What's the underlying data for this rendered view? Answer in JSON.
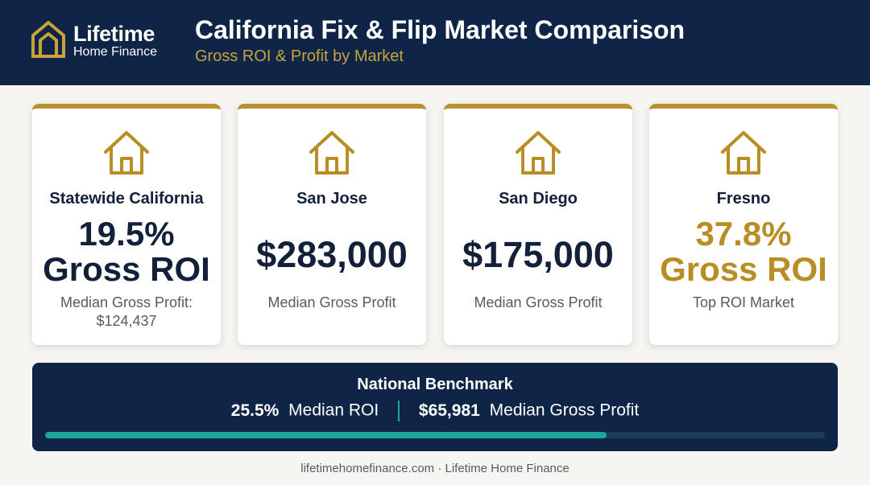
{
  "brand": {
    "name": "Lifetime",
    "sub": "Home Finance",
    "accent": "#c9a23a",
    "navy": "#0f2547",
    "teal": "#1ea69a"
  },
  "header": {
    "title": "California Fix & Flip Market Comparison",
    "subtitle": "Gross ROI & Profit by Market"
  },
  "cards": [
    {
      "name": "Statewide California",
      "metric_line1": "19.5%",
      "metric_line2": "Gross ROI",
      "note_line1": "Median Gross Profit:",
      "note_line2": "$124,437",
      "icon": "house-icon"
    },
    {
      "name": "San Jose",
      "metric": "$283,000",
      "note": "Median Gross Profit",
      "icon": "house-icon"
    },
    {
      "name": "San Diego",
      "metric": "$175,000",
      "note": "Median Gross Profit",
      "icon": "house-icon"
    },
    {
      "name": "Fresno",
      "metric_line1": "37.8%",
      "metric_line2": "Gross ROI",
      "note": "Top ROI Market",
      "icon": "house-icon"
    }
  ],
  "benchmark": {
    "title": "National Benchmark",
    "roi_value": "25.5%",
    "roi_label": "Median ROI",
    "profit_value": "$65,981",
    "profit_label": "Median Gross Profit",
    "bar_fill_fraction": 0.72
  },
  "footer": {
    "text": "lifetimehomefinance.com · Lifetime Home Finance"
  }
}
